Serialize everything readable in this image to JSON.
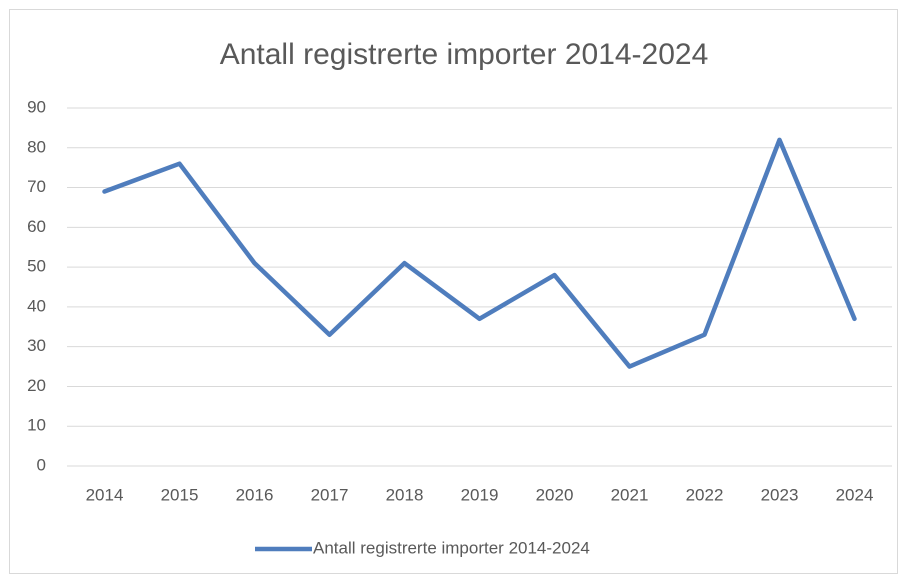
{
  "chart_data": {
    "type": "line",
    "title": "Antall registrerte importer 2014-2024",
    "categories": [
      "2014",
      "2015",
      "2016",
      "2017",
      "2018",
      "2019",
      "2020",
      "2021",
      "2022",
      "2023",
      "2024"
    ],
    "series": [
      {
        "name": "Antall registrerte importer 2014-2024",
        "color": "#4f7dbd",
        "values": [
          69,
          76,
          51,
          33,
          51,
          37,
          48,
          25,
          33,
          82,
          37
        ]
      }
    ],
    "ylim": [
      0,
      90
    ],
    "yticks": [
      0,
      10,
      20,
      30,
      40,
      50,
      60,
      70,
      80,
      90
    ],
    "grid": true,
    "legend": "bottom"
  }
}
